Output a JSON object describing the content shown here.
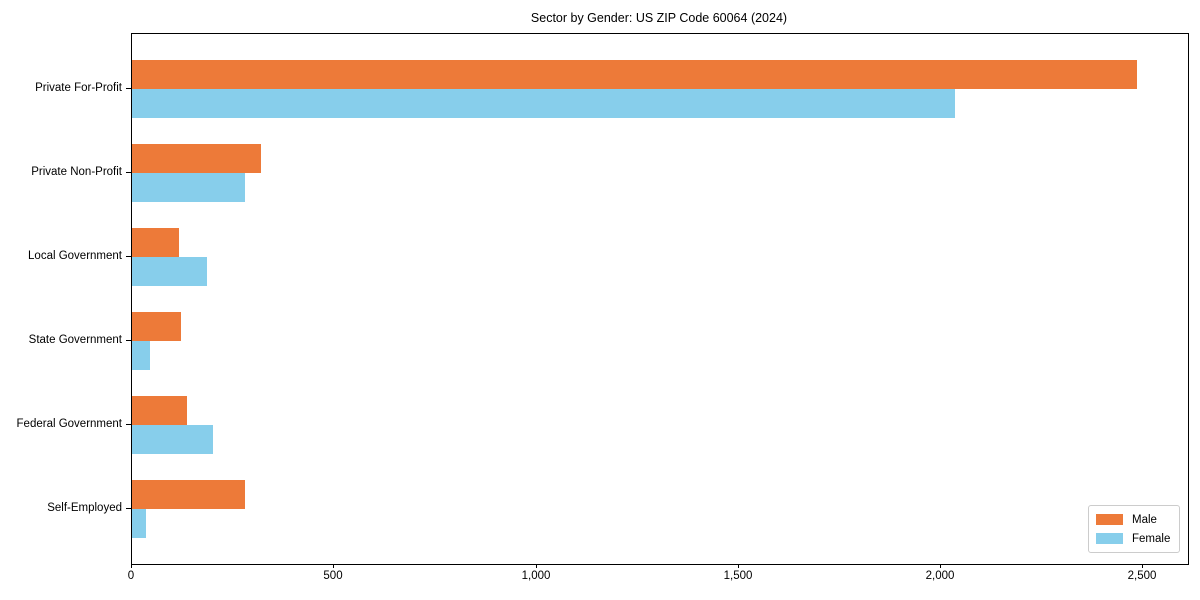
{
  "title": "Sector by Gender: US ZIP Code 60064 (2024)",
  "legend": {
    "items": [
      {
        "label": "Male",
        "color": "#ED7A39"
      },
      {
        "label": "Female",
        "color": "#87CEEB"
      }
    ]
  },
  "chart_data": {
    "type": "bar",
    "orientation": "horizontal",
    "title": "Sector by Gender: US ZIP Code 60064 (2024)",
    "categories": [
      "Private For-Profit",
      "Private Non-Profit",
      "Local Government",
      "State Government",
      "Federal Government",
      "Self-Employed"
    ],
    "series": [
      {
        "name": "Male",
        "color": "#ED7A39",
        "values": [
          2485,
          320,
          115,
          120,
          135,
          280
        ]
      },
      {
        "name": "Female",
        "color": "#87CEEB",
        "values": [
          2035,
          280,
          185,
          45,
          200,
          35
        ]
      }
    ],
    "xlabel": "",
    "ylabel": "",
    "xlim": [
      0,
      2610
    ],
    "x_tick_values": [
      0,
      500,
      1000,
      1500,
      2000,
      2500
    ],
    "x_tick_labels": [
      "0",
      "500",
      "1,000",
      "1,500",
      "2,000",
      "2,500"
    ],
    "grid": false,
    "legend_position": "lower right",
    "spine_color": "#000000",
    "background_color": "#ffffff"
  }
}
